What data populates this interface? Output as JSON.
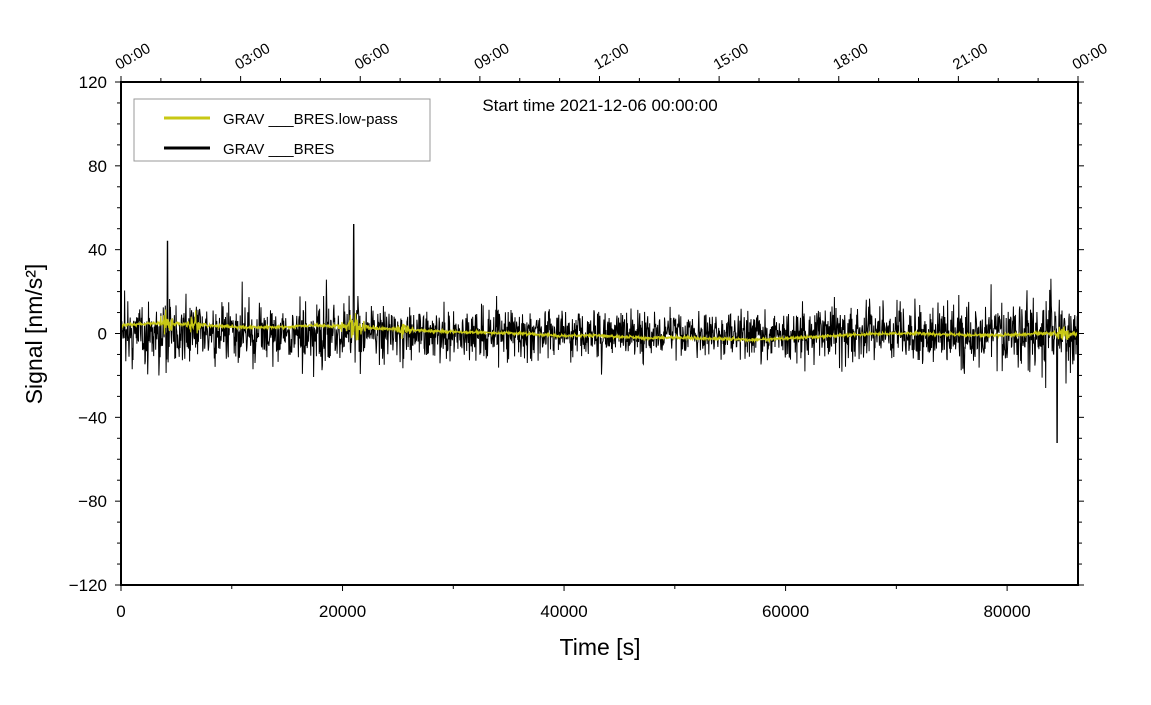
{
  "chart_data": {
    "type": "line",
    "title": "Start time 2021-12-06 00:00:00",
    "xlabel": "Time [s]",
    "ylabel": "Signal [nm/s²]",
    "xlim": [
      0,
      86400
    ],
    "ylim": [
      -120,
      120
    ],
    "x_ticks": [
      0,
      20000,
      40000,
      60000,
      80000
    ],
    "x_tick_labels": [
      "0",
      "20000",
      "40000",
      "60000",
      "80000"
    ],
    "y_ticks": [
      -120,
      -80,
      -40,
      0,
      40,
      80,
      120
    ],
    "y_tick_labels": [
      "−120",
      "−80",
      "−40",
      "0",
      "40",
      "80",
      "120"
    ],
    "top_axis_tick_labels": [
      "00:00",
      "03:00",
      "06:00",
      "09:00",
      "12:00",
      "15:00",
      "18:00",
      "21:00",
      "00:00"
    ],
    "legend_position": "top-left",
    "grid": false,
    "series": [
      {
        "name": "GRAV ___BRES.low-pass",
        "color": "#c8c814",
        "hourly_mean": [
          4,
          5,
          4,
          3,
          3,
          4,
          3,
          2,
          1,
          0.5,
          0,
          -1,
          -1,
          -2,
          -2,
          -2.5,
          -3,
          -2,
          -1,
          0,
          0,
          -0.5,
          -1,
          0,
          0
        ],
        "bursts": [
          {
            "t": 4200,
            "amp": 10
          },
          {
            "t": 6600,
            "amp": 8
          },
          {
            "t": 21000,
            "amp": 10
          },
          {
            "t": 25500,
            "amp": 5
          },
          {
            "t": 85000,
            "amp": 8
          }
        ]
      },
      {
        "name": "GRAV ___BRES",
        "color": "#000000",
        "hourly_amplitude": [
          22,
          24,
          22,
          22,
          22,
          24,
          24,
          21,
          20,
          20,
          19,
          19,
          19,
          18,
          18,
          18,
          19,
          20,
          22,
          23,
          24,
          26,
          28,
          30,
          30
        ],
        "spikes": [
          {
            "t": 4200,
            "value": 44
          },
          {
            "t": 21000,
            "value": 52
          },
          {
            "t": 84500,
            "value": -52
          }
        ]
      }
    ]
  }
}
